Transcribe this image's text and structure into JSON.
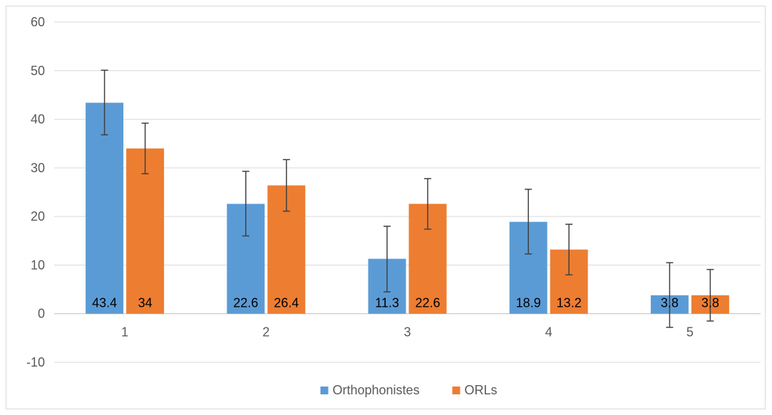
{
  "chart_data": {
    "type": "bar",
    "categories": [
      "1",
      "2",
      "3",
      "4",
      "5"
    ],
    "series": [
      {
        "name": "Orthophonistes",
        "color": "#5b9bd5",
        "values": [
          43.4,
          22.6,
          11.3,
          18.9,
          3.8
        ],
        "error_low": [
          36.8,
          16.0,
          4.5,
          12.3,
          -2.8
        ],
        "error_high": [
          50.1,
          29.3,
          18.0,
          25.6,
          10.5
        ]
      },
      {
        "name": "ORLs",
        "color": "#ed7d31",
        "values": [
          34,
          26.4,
          22.6,
          13.2,
          3.8
        ],
        "error_low": [
          28.8,
          21.1,
          17.4,
          8.0,
          -1.5
        ],
        "error_high": [
          39.2,
          31.7,
          27.8,
          18.4,
          9.1
        ]
      }
    ],
    "ylim": [
      -10,
      60
    ],
    "yticks": [
      -10,
      0,
      10,
      20,
      30,
      40,
      50,
      60
    ],
    "grid": true,
    "legend": "bottom-center",
    "title": "",
    "xlabel": "",
    "ylabel": ""
  }
}
